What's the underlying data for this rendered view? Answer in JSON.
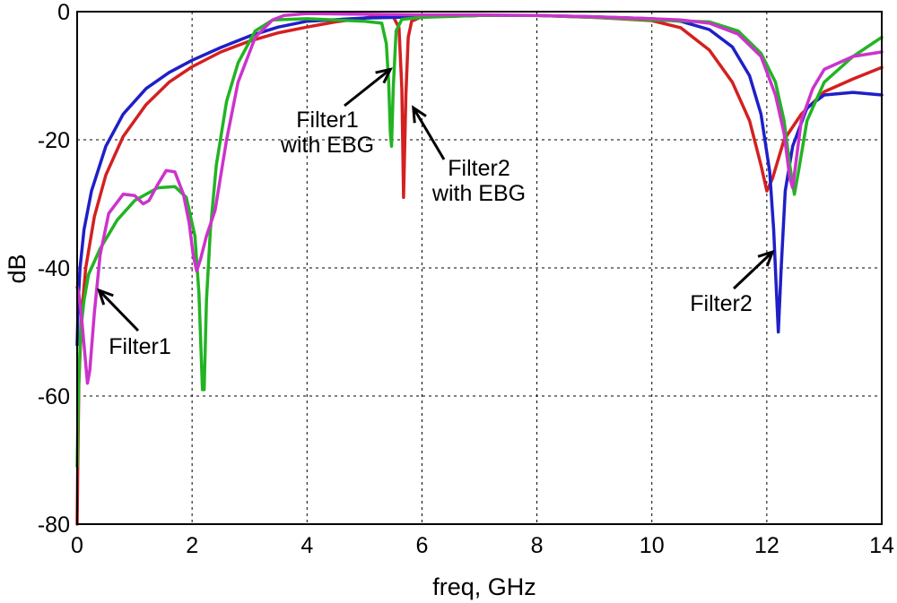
{
  "chart_data": {
    "type": "line",
    "title": "",
    "xlabel": "freq, GHz",
    "ylabel": "dB",
    "xlim": [
      0,
      14
    ],
    "ylim": [
      -80,
      0
    ],
    "x_ticks": [
      0,
      2,
      4,
      6,
      8,
      10,
      12,
      14
    ],
    "y_ticks": [
      0,
      -20,
      -40,
      -60,
      -80
    ],
    "grid": true,
    "legend": "none",
    "series": [
      {
        "color": "#d42020",
        "points": [
          [
            0,
            -80
          ],
          [
            0.01,
            -72
          ],
          [
            0.03,
            -58
          ],
          [
            0.08,
            -47
          ],
          [
            0.15,
            -40
          ],
          [
            0.3,
            -32
          ],
          [
            0.5,
            -25.5
          ],
          [
            0.8,
            -19.5
          ],
          [
            1.2,
            -14.5
          ],
          [
            1.6,
            -11
          ],
          [
            2,
            -8.6
          ],
          [
            2.5,
            -6.3
          ],
          [
            3,
            -4.6
          ],
          [
            3.5,
            -3.3
          ],
          [
            4,
            -2.4
          ],
          [
            4.5,
            -1.6
          ],
          [
            5,
            -1
          ],
          [
            5.3,
            -0.6
          ],
          [
            5.5,
            -0.8
          ],
          [
            5.6,
            -2.5
          ],
          [
            5.65,
            -12
          ],
          [
            5.68,
            -29
          ],
          [
            5.72,
            -13
          ],
          [
            5.76,
            -4
          ],
          [
            5.82,
            -1.5
          ],
          [
            6,
            -0.8
          ],
          [
            7,
            -0.6
          ],
          [
            8,
            -0.6
          ],
          [
            9,
            -0.9
          ],
          [
            10,
            -1.4
          ],
          [
            10.5,
            -2.5
          ],
          [
            11,
            -6
          ],
          [
            11.4,
            -11
          ],
          [
            11.7,
            -17
          ],
          [
            11.9,
            -24
          ],
          [
            12,
            -28
          ],
          [
            12.1,
            -26
          ],
          [
            12.3,
            -20
          ],
          [
            12.6,
            -16
          ],
          [
            13,
            -12.5
          ],
          [
            13.5,
            -10.5
          ],
          [
            14,
            -8.7
          ]
        ]
      },
      {
        "color": "#1f1fc8",
        "points": [
          [
            0,
            -52
          ],
          [
            0.02,
            -45
          ],
          [
            0.05,
            -40
          ],
          [
            0.12,
            -34
          ],
          [
            0.25,
            -28
          ],
          [
            0.5,
            -21
          ],
          [
            0.8,
            -16
          ],
          [
            1.2,
            -12
          ],
          [
            1.6,
            -9.5
          ],
          [
            2,
            -7.6
          ],
          [
            2.5,
            -5.6
          ],
          [
            3,
            -3.8
          ],
          [
            3.5,
            -2.4
          ],
          [
            4,
            -1.5
          ],
          [
            5,
            -1
          ],
          [
            6,
            -0.8
          ],
          [
            7,
            -0.6
          ],
          [
            8,
            -0.6
          ],
          [
            9,
            -0.8
          ],
          [
            10,
            -1.1
          ],
          [
            10.5,
            -1.5
          ],
          [
            11,
            -2.8
          ],
          [
            11.4,
            -5.5
          ],
          [
            11.7,
            -10
          ],
          [
            11.9,
            -16
          ],
          [
            12.05,
            -25
          ],
          [
            12.12,
            -34
          ],
          [
            12.17,
            -44
          ],
          [
            12.2,
            -50
          ],
          [
            12.25,
            -40
          ],
          [
            12.32,
            -28
          ],
          [
            12.45,
            -21
          ],
          [
            12.7,
            -15
          ],
          [
            13,
            -13
          ],
          [
            13.5,
            -12.6
          ],
          [
            14,
            -13
          ]
        ]
      },
      {
        "color": "#22b422",
        "points": [
          [
            0,
            -71
          ],
          [
            0.02,
            -60
          ],
          [
            0.06,
            -50
          ],
          [
            0.12,
            -45
          ],
          [
            0.2,
            -41
          ],
          [
            0.4,
            -37
          ],
          [
            0.7,
            -32.5
          ],
          [
            1,
            -29.5
          ],
          [
            1.4,
            -27.5
          ],
          [
            1.7,
            -27.3
          ],
          [
            1.9,
            -29
          ],
          [
            2.05,
            -35
          ],
          [
            2.12,
            -44
          ],
          [
            2.18,
            -59
          ],
          [
            2.21,
            -59
          ],
          [
            2.25,
            -45
          ],
          [
            2.32,
            -34
          ],
          [
            2.42,
            -24
          ],
          [
            2.6,
            -14
          ],
          [
            2.8,
            -8
          ],
          [
            3.1,
            -3
          ],
          [
            3.4,
            -1.3
          ],
          [
            4,
            -1.1
          ],
          [
            5,
            -1.5
          ],
          [
            5.3,
            -1.8
          ],
          [
            5.38,
            -5
          ],
          [
            5.42,
            -11
          ],
          [
            5.45,
            -19
          ],
          [
            5.47,
            -21
          ],
          [
            5.5,
            -12
          ],
          [
            5.55,
            -3
          ],
          [
            5.65,
            -1.2
          ],
          [
            6,
            -0.9
          ],
          [
            7,
            -0.6
          ],
          [
            8,
            -0.6
          ],
          [
            9,
            -0.9
          ],
          [
            10,
            -1.3
          ],
          [
            11,
            -1.6
          ],
          [
            11.5,
            -3
          ],
          [
            11.9,
            -6.5
          ],
          [
            12.15,
            -11
          ],
          [
            12.3,
            -17
          ],
          [
            12.4,
            -24
          ],
          [
            12.48,
            -28.5
          ],
          [
            12.55,
            -25
          ],
          [
            12.7,
            -17
          ],
          [
            13,
            -11
          ],
          [
            13.5,
            -7
          ],
          [
            14,
            -4
          ]
        ]
      },
      {
        "color": "#cc33cc",
        "points": [
          [
            0,
            -43
          ],
          [
            0.03,
            -44
          ],
          [
            0.08,
            -48
          ],
          [
            0.13,
            -53
          ],
          [
            0.18,
            -58
          ],
          [
            0.22,
            -56
          ],
          [
            0.3,
            -47
          ],
          [
            0.4,
            -38
          ],
          [
            0.55,
            -31.5
          ],
          [
            0.8,
            -28.5
          ],
          [
            1,
            -28.7
          ],
          [
            1.15,
            -30
          ],
          [
            1.25,
            -29.5
          ],
          [
            1.4,
            -27
          ],
          [
            1.55,
            -24.8
          ],
          [
            1.7,
            -25
          ],
          [
            1.85,
            -28.5
          ],
          [
            1.95,
            -33
          ],
          [
            2.02,
            -38
          ],
          [
            2.08,
            -40.5
          ],
          [
            2.15,
            -38.5
          ],
          [
            2.25,
            -35
          ],
          [
            2.4,
            -31
          ],
          [
            2.6,
            -20
          ],
          [
            2.8,
            -11
          ],
          [
            3.1,
            -4
          ],
          [
            3.4,
            -1.3
          ],
          [
            3.6,
            -0.6
          ],
          [
            4,
            -0.3
          ],
          [
            5,
            -0.4
          ],
          [
            6,
            -0.5
          ],
          [
            7,
            -0.5
          ],
          [
            8,
            -0.6
          ],
          [
            9,
            -0.8
          ],
          [
            10,
            -1.1
          ],
          [
            10.5,
            -1.3
          ],
          [
            11,
            -1.8
          ],
          [
            11.5,
            -3.5
          ],
          [
            11.9,
            -7
          ],
          [
            12.15,
            -13
          ],
          [
            12.3,
            -19
          ],
          [
            12.4,
            -26
          ],
          [
            12.45,
            -27.5
          ],
          [
            12.5,
            -24
          ],
          [
            12.6,
            -17
          ],
          [
            12.8,
            -12
          ],
          [
            13,
            -9
          ],
          [
            13.5,
            -7
          ],
          [
            14,
            -6.3
          ]
        ]
      }
    ],
    "annotations": [
      {
        "label_lines": [
          "Filter1",
          "with EBG"
        ],
        "anchor": [
          5.45,
          -9
        ]
      },
      {
        "label_lines": [
          "Filter2",
          "with EBG"
        ],
        "anchor": [
          5.85,
          -15
        ]
      },
      {
        "label_lines": [
          "Filter1"
        ],
        "anchor": [
          0.38,
          -43.5
        ]
      },
      {
        "label_lines": [
          "Filter2"
        ],
        "anchor": [
          12.1,
          -37.5
        ]
      }
    ]
  }
}
